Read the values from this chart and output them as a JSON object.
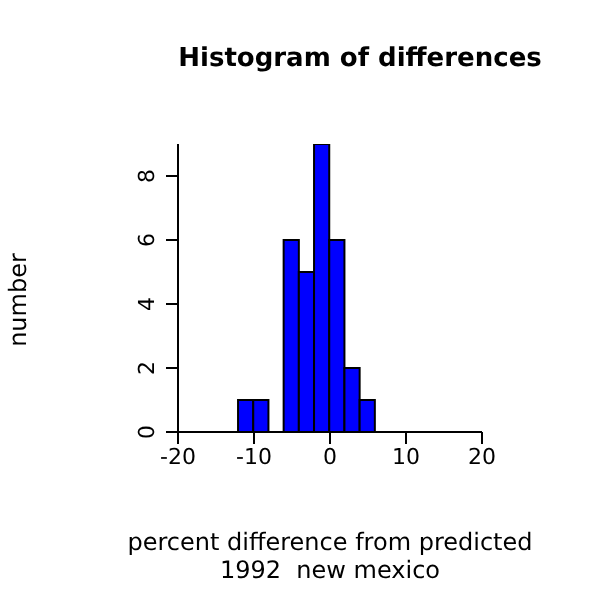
{
  "chart_data": {
    "type": "histogram",
    "title": "Histogram of differences",
    "xlabel": "percent difference from predicted",
    "ylabel": "number",
    "annotations": [
      "1992  new mexico"
    ],
    "bins": [
      -12,
      -10,
      -8,
      -6,
      -4,
      -2,
      0,
      2,
      4,
      6
    ],
    "values": [
      1,
      1,
      0,
      6,
      5,
      9,
      6,
      2,
      1
    ],
    "color": "#0000ff",
    "xlim": [
      -20,
      20
    ],
    "xticks": [
      -20,
      -10,
      0,
      10,
      20
    ],
    "ylim": [
      0,
      9
    ],
    "yticks": [
      0,
      2,
      4,
      6,
      8
    ],
    "grid": false
  }
}
